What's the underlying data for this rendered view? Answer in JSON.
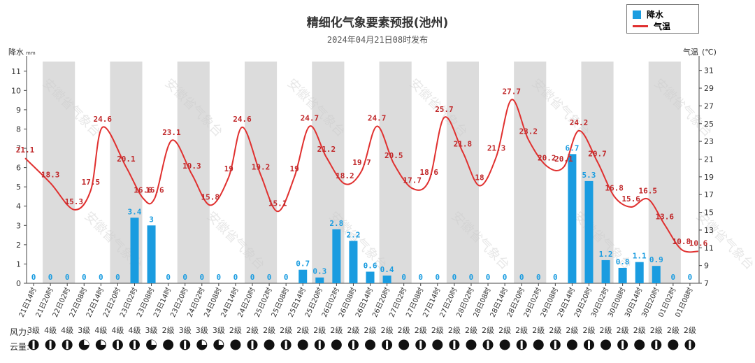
{
  "header": {
    "title": "精细化气象要素预报(池州)",
    "subtitle": "2024年04月21日08时发布"
  },
  "legend": {
    "rain_label": "降水",
    "temp_label": "气温",
    "rain_color": "#1a9ce0",
    "temp_color": "#e0302f"
  },
  "watermark": "安徽省气象台",
  "rows": {
    "wind_label": "风力:",
    "cloud_label": "云量:"
  },
  "chart_data": {
    "type": "bar+line",
    "y_left_label": "降水(mm)",
    "y_right_label": "气温(℃)",
    "y_left_range": [
      0,
      11.5
    ],
    "y_left_ticks": [
      0,
      1,
      2,
      3,
      4,
      5,
      6,
      7,
      8,
      9,
      10,
      11
    ],
    "y_right_range": [
      7,
      32
    ],
    "y_right_ticks": [
      7,
      9,
      11,
      13,
      15,
      17,
      19,
      21,
      23,
      25,
      27,
      29,
      31
    ],
    "grid": "alternating gray day bands",
    "x": [
      "21日14时",
      "21日20时",
      "22日02时",
      "22日08时",
      "22日14时",
      "22日20时",
      "23日02时",
      "23日08时",
      "23日14时",
      "23日20时",
      "24日02时",
      "24日08时",
      "24日14时",
      "24日20时",
      "25日02时",
      "25日08时",
      "25日14时",
      "25日20时",
      "26日02时",
      "26日08时",
      "26日14时",
      "26日20时",
      "27日02时",
      "27日08时",
      "27日14时",
      "27日20时",
      "28日02时",
      "28日08时",
      "28日14时",
      "28日20时",
      "29日02时",
      "29日08时",
      "29日14时",
      "29日20时",
      "30日02时",
      "30日08时",
      "30日14时",
      "30日20时",
      "01日02时",
      "01日08时"
    ],
    "series": [
      {
        "name": "降水",
        "type": "bar",
        "values": [
          0,
          0,
          0,
          0,
          0,
          0,
          3.4,
          3,
          0,
          0,
          0,
          0,
          0,
          0,
          0,
          0,
          0.7,
          0.3,
          2.8,
          2.2,
          0.6,
          0.4,
          0,
          0,
          0,
          0,
          0,
          0,
          0,
          0,
          0,
          0,
          6.7,
          5.3,
          1.2,
          0.8,
          1.1,
          0.9,
          0,
          0
        ],
        "labels": [
          "0",
          "0",
          "0",
          "0",
          "0",
          "0",
          "3.4",
          "3",
          "0",
          "0",
          "0",
          "0",
          "0",
          "0",
          "0",
          "0",
          "0.7",
          "0.3",
          "2.8",
          "2.2",
          "0.6",
          "0.4",
          "0",
          "0",
          "0",
          "0",
          "0",
          "0",
          "0",
          "0",
          "0",
          "0",
          "6.7",
          "5.3",
          "1.2",
          "0.8",
          "1.1",
          "0.9",
          "0",
          "0"
        ]
      },
      {
        "name": "气温",
        "type": "line",
        "points": [
          {
            "x": 0,
            "y": 21.1,
            "label": "21.1"
          },
          {
            "x": 1.5,
            "y": 18.3,
            "label": "18.3"
          },
          {
            "x": 2.9,
            "y": 15.3,
            "label": "15.3"
          },
          {
            "x": 3.9,
            "y": 17.5,
            "label": "17.5"
          },
          {
            "x": 4.6,
            "y": 24.6,
            "label": "24.6"
          },
          {
            "x": 6.0,
            "y": 20.1,
            "label": "20.1"
          },
          {
            "x": 7.0,
            "y": 16.6,
            "label": "16.6"
          },
          {
            "x": 7.7,
            "y": 16.6,
            "label": "16.6"
          },
          {
            "x": 8.7,
            "y": 23.1,
            "label": "23.1"
          },
          {
            "x": 9.9,
            "y": 19.3,
            "label": "19.3"
          },
          {
            "x": 11.0,
            "y": 15.8,
            "label": "15.8"
          },
          {
            "x": 12.1,
            "y": 19,
            "label": "19"
          },
          {
            "x": 12.9,
            "y": 24.6,
            "label": "24.6"
          },
          {
            "x": 14.0,
            "y": 19.2,
            "label": "19.2"
          },
          {
            "x": 15.0,
            "y": 15.1,
            "label": "15.1"
          },
          {
            "x": 16.0,
            "y": 19,
            "label": "19"
          },
          {
            "x": 16.9,
            "y": 24.7,
            "label": "24.7"
          },
          {
            "x": 17.9,
            "y": 21.2,
            "label": "21.2"
          },
          {
            "x": 19.0,
            "y": 18.2,
            "label": "18.2"
          },
          {
            "x": 20.0,
            "y": 19.7,
            "label": "19.7"
          },
          {
            "x": 20.9,
            "y": 24.7,
            "label": "24.7"
          },
          {
            "x": 21.9,
            "y": 20.5,
            "label": "20.5"
          },
          {
            "x": 23.0,
            "y": 17.7,
            "label": "17.7"
          },
          {
            "x": 24.0,
            "y": 18.6,
            "label": "18.6"
          },
          {
            "x": 24.9,
            "y": 25.7,
            "label": "25.7"
          },
          {
            "x": 26.0,
            "y": 21.8,
            "label": "21.8"
          },
          {
            "x": 27.0,
            "y": 18,
            "label": "18"
          },
          {
            "x": 28.0,
            "y": 21.3,
            "label": "21.3"
          },
          {
            "x": 28.9,
            "y": 27.7,
            "label": "27.7"
          },
          {
            "x": 29.9,
            "y": 23.2,
            "label": "23.2"
          },
          {
            "x": 31.0,
            "y": 20.2,
            "label": "20.2"
          },
          {
            "x": 32.0,
            "y": 20.1,
            "label": "20.1"
          },
          {
            "x": 32.9,
            "y": 24.2,
            "label": "24.2"
          },
          {
            "x": 34.0,
            "y": 20.7,
            "label": "20.7"
          },
          {
            "x": 35.0,
            "y": 16.8,
            "label": "16.8"
          },
          {
            "x": 36.0,
            "y": 15.6,
            "label": "15.6"
          },
          {
            "x": 37.0,
            "y": 16.5,
            "label": "16.5"
          },
          {
            "x": 38.0,
            "y": 13.6,
            "label": "13.6"
          },
          {
            "x": 39.0,
            "y": 10.8,
            "label": "10.8"
          },
          {
            "x": 40.0,
            "y": 10.6,
            "label": "10.6"
          }
        ]
      }
    ],
    "wind": [
      "3级",
      "4级",
      "4级",
      "3级",
      "4级",
      "4级",
      "4级",
      "3级",
      "2级",
      "3级",
      "3级",
      "3级",
      "2级",
      "2级",
      "2级",
      "2级",
      "2级",
      "2级",
      "2级",
      "2级",
      "2级",
      "2级",
      "2级",
      "2级",
      "2级",
      "2级",
      "2级",
      "2级",
      "2级",
      "2级",
      "2级",
      "2级",
      "2级",
      "2级",
      "2级",
      "2级",
      "2级",
      "2级",
      "2级",
      "2级"
    ],
    "cloud": [
      "half",
      "half",
      "half",
      "dark-q",
      "light-q",
      "half",
      "half",
      "dark-q",
      "full",
      "half",
      "light-q",
      "light-q",
      "full",
      "half",
      "full",
      "half",
      "full",
      "half",
      "full",
      "half",
      "full",
      "half",
      "full",
      "half",
      "full",
      "half",
      "full",
      "half",
      "full",
      "half",
      "full",
      "half",
      "full",
      "half",
      "full",
      "half",
      "full",
      "half",
      "full",
      "half"
    ]
  }
}
